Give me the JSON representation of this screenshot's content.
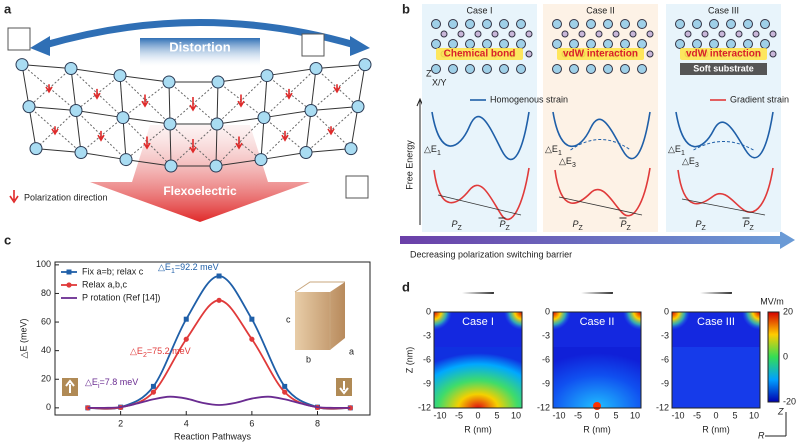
{
  "panel_labels": [
    "a",
    "b",
    "c",
    "d"
  ],
  "panel_a": {
    "distortion": "Distortion",
    "flexoelectric": "Flexoelectric",
    "legend": "Polarization direction"
  },
  "panel_b": {
    "cases": [
      {
        "title": "Case I",
        "interface": "Chemical bond"
      },
      {
        "title": "Case II",
        "interface": "vdW interaction"
      },
      {
        "title": "Case III",
        "interface": "vdW interaction",
        "substrate": "Soft substrate"
      }
    ],
    "homogenous": "Homogenous strain",
    "gradient": "Gradient strain",
    "y_label": "Free Energy",
    "barrier": "Decreasing polarization switching barrier",
    "axis_z": "Z",
    "axis_xy": "X/Y",
    "p_symbol": "P",
    "p_sub": "Z",
    "de_symbol": "△E",
    "de_subs": [
      "1",
      "3"
    ]
  },
  "chart_data": {
    "type": "line",
    "x_label": "Reaction Pathways",
    "y_label": "△E (meV)",
    "legend": "upper left",
    "xlim": [
      0,
      9.6
    ],
    "xticks": [
      2,
      4,
      6,
      8
    ],
    "ylim": [
      -5,
      102
    ],
    "yticks": [
      0,
      20,
      40,
      60,
      80,
      100
    ],
    "series": [
      {
        "name": "Fix a=b; relax c",
        "color": "#1f5fa8",
        "marker": "square",
        "x": [
          1,
          2,
          3,
          4,
          5,
          6,
          7,
          8,
          9
        ],
        "values": [
          0,
          0.5,
          15,
          62,
          92.2,
          62,
          15,
          0.5,
          0
        ]
      },
      {
        "name": "Relax a,b,c",
        "color": "#e03a3a",
        "marker": "circle",
        "x": [
          1,
          2,
          3,
          4,
          5,
          6,
          7,
          8,
          9
        ],
        "values": [
          0,
          0.3,
          11,
          48,
          75.2,
          48,
          11,
          0.3,
          0
        ]
      },
      {
        "name": "P rotation (Ref [14])",
        "color": "#6a2c91",
        "marker": "none",
        "x": [
          1,
          1.5,
          2,
          2.5,
          3,
          3.5,
          4,
          4.5,
          5,
          5.5,
          6,
          6.5,
          7,
          7.5,
          8,
          8.5,
          9
        ],
        "values": [
          0,
          0,
          0.5,
          3,
          6,
          7.8,
          6.5,
          3.5,
          2,
          3.5,
          6.5,
          7.8,
          6,
          3,
          0.5,
          0,
          0
        ]
      }
    ],
    "annotations": [
      {
        "symbol": "△E",
        "sub": "1",
        "text": "=92.2 meV",
        "color": "#1f5fa8"
      },
      {
        "symbol": "△E",
        "sub": "2",
        "text": "=75.2 meV",
        "color": "#e03a3a"
      },
      {
        "symbol": "△E",
        "sub": "i",
        "text": "=7.8 meV",
        "color": "#6a2c91"
      }
    ],
    "inset_labels": [
      "a",
      "b",
      "c"
    ]
  },
  "panel_d": {
    "cases": [
      "Case I",
      "Case II",
      "Case III"
    ],
    "x_label": "R (nm)",
    "y_label": "Z (nm)",
    "xticks": [
      -10,
      -5,
      0,
      5,
      10
    ],
    "zticks": [
      0,
      -3,
      -6,
      -9,
      -12
    ],
    "colorbar_unit": "MV/m",
    "colorbar_ticks": [
      20,
      0,
      -20
    ],
    "axis_z": "Z",
    "axis_r": "R"
  }
}
